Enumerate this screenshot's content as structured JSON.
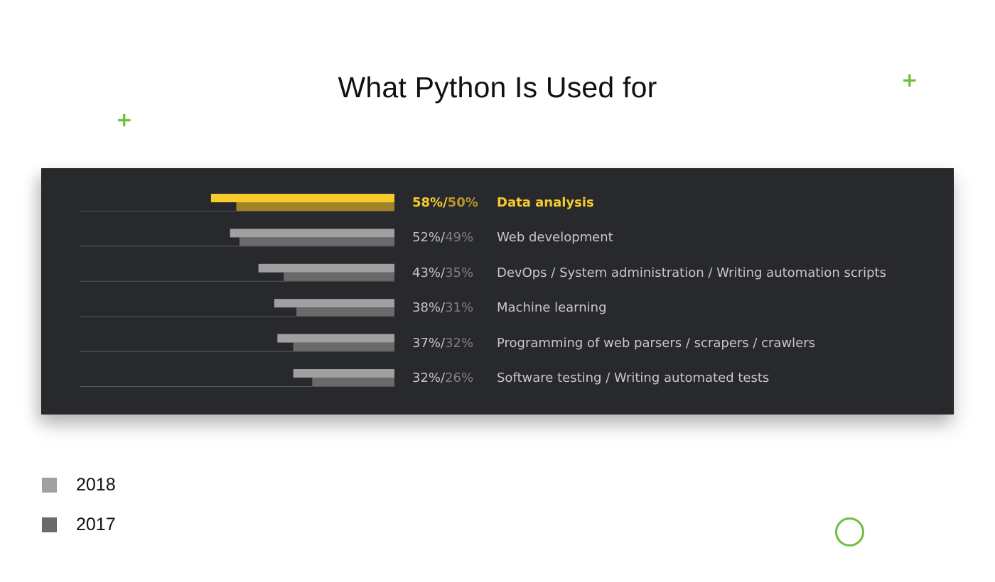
{
  "title": "What Python Is Used for",
  "decorations": {
    "plus_symbol": "+",
    "accent_color": "#6cbf3f"
  },
  "chart_data": {
    "type": "bar",
    "orientation": "horizontal",
    "title": "What Python Is Used for",
    "xlabel": "",
    "ylabel": "",
    "xlim": [
      0,
      100
    ],
    "grid": false,
    "legend_position": "bottom-left",
    "categories": [
      "Data analysis",
      "Web development",
      "DevOps / System administration / Writing automation scripts",
      "Machine learning",
      "Programming of web parsers / scrapers / crawlers",
      "Software testing / Writing automated tests"
    ],
    "series": [
      {
        "name": "2018",
        "values": [
          58,
          52,
          43,
          38,
          37,
          32
        ],
        "color": "#a0a0a0",
        "highlight_color": "#f6cc2d"
      },
      {
        "name": "2017",
        "values": [
          50,
          49,
          35,
          31,
          32,
          26
        ],
        "color": "#6a6a6a",
        "highlight_color": "#a08426"
      }
    ],
    "data_labels": [
      {
        "v2018": "58%",
        "sep": "/",
        "v2017": "50%"
      },
      {
        "v2018": "52%",
        "sep": "/",
        "v2017": "49%"
      },
      {
        "v2018": "43%",
        "sep": "/",
        "v2017": "35%"
      },
      {
        "v2018": "38%",
        "sep": "/",
        "v2017": "31%"
      },
      {
        "v2018": "37%",
        "sep": "/",
        "v2017": "32%"
      },
      {
        "v2018": "32%",
        "sep": "/",
        "v2017": "26%"
      }
    ],
    "highlighted_category_index": 0,
    "panel_background": "#28292c",
    "baseline_color": "#55575b"
  },
  "legend": [
    {
      "label": "2018",
      "color": "#a0a0a0"
    },
    {
      "label": "2017",
      "color": "#6a6a6a"
    }
  ]
}
